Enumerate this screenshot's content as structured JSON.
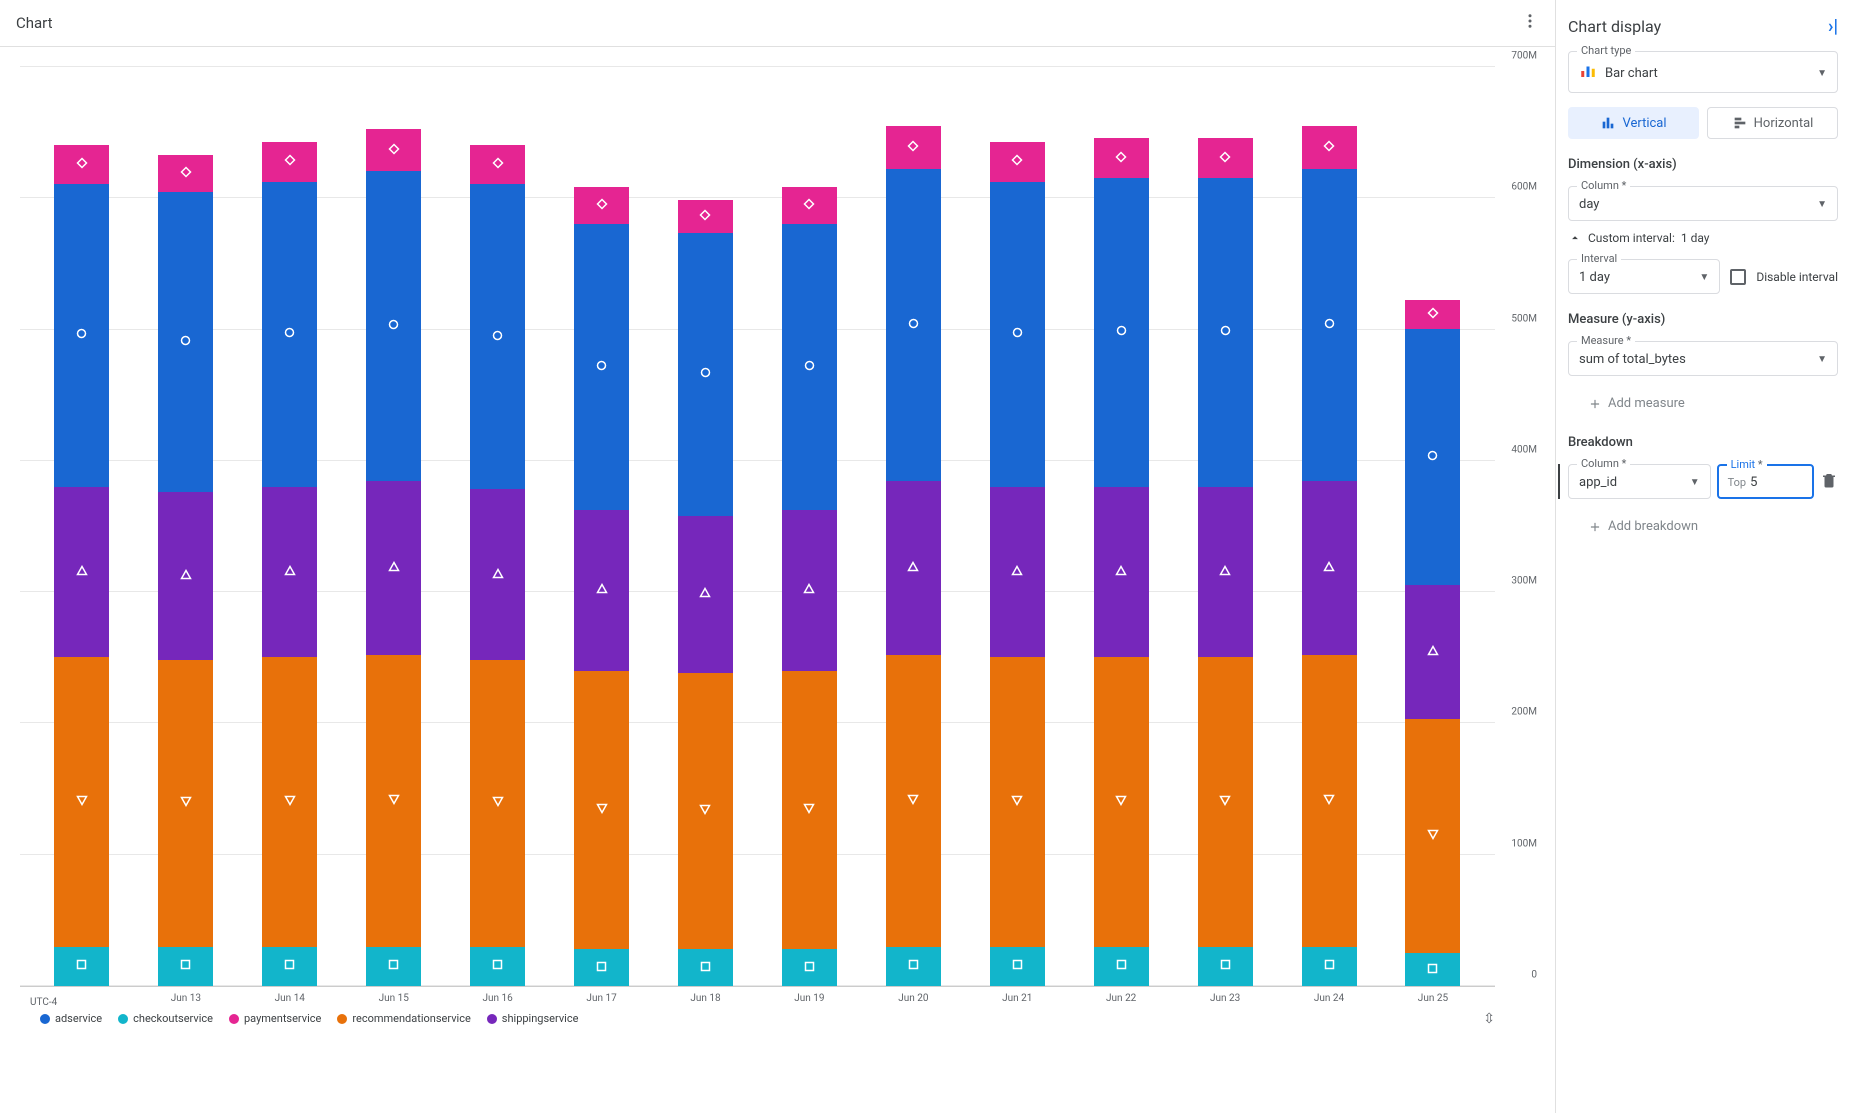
{
  "header": {
    "title": "Chart"
  },
  "chart": {
    "type": "stacked-bar",
    "ymax": 700,
    "yunit": "M",
    "ytick_step": 100,
    "grid_color": "#e8e8e8",
    "axis_font_size": 10,
    "timezone": "UTC-4",
    "categories": [
      "",
      "Jun 13",
      "Jun 14",
      "Jun 15",
      "Jun 16",
      "Jun 17",
      "Jun 18",
      "Jun 19",
      "Jun 20",
      "Jun 21",
      "Jun 22",
      "Jun 23",
      "Jun 24",
      "Jun 25"
    ],
    "series": [
      {
        "name": "checkoutservice",
        "color": "#12b5cb",
        "marker": "square"
      },
      {
        "name": "recommendationservice",
        "color": "#e8710a",
        "marker": "triangle-down"
      },
      {
        "name": "shippingservice",
        "color": "#7627bb",
        "marker": "triangle-up"
      },
      {
        "name": "adservice",
        "color": "#1967d2",
        "marker": "circle"
      },
      {
        "name": "paymentservice",
        "color": "#e52592",
        "marker": "diamond"
      }
    ],
    "data": [
      [
        30,
        220,
        130,
        230,
        30
      ],
      [
        30,
        218,
        128,
        228,
        28
      ],
      [
        30,
        220,
        130,
        232,
        30
      ],
      [
        30,
        222,
        132,
        236,
        32
      ],
      [
        30,
        218,
        130,
        232,
        30
      ],
      [
        28,
        212,
        122,
        218,
        28
      ],
      [
        28,
        210,
        120,
        215,
        25
      ],
      [
        28,
        212,
        122,
        218,
        28
      ],
      [
        30,
        222,
        132,
        238,
        32
      ],
      [
        30,
        220,
        130,
        232,
        30
      ],
      [
        30,
        220,
        130,
        235,
        30
      ],
      [
        30,
        220,
        130,
        235,
        30
      ],
      [
        30,
        222,
        132,
        238,
        32
      ],
      [
        25,
        178,
        102,
        195,
        22
      ]
    ]
  },
  "legend": [
    {
      "name": "adservice",
      "color": "#1967d2"
    },
    {
      "name": "checkoutservice",
      "color": "#12b5cb"
    },
    {
      "name": "paymentservice",
      "color": "#e52592"
    },
    {
      "name": "recommendationservice",
      "color": "#e8710a"
    },
    {
      "name": "shippingservice",
      "color": "#7627bb"
    }
  ],
  "sidebar": {
    "title": "Chart display",
    "chart_type": {
      "label": "Chart type",
      "value": "Bar chart"
    },
    "orientation": {
      "vertical": "Vertical",
      "horizontal": "Horizontal",
      "active": "vertical"
    },
    "dimension": {
      "title": "Dimension (x-axis)",
      "column_label": "Column",
      "column_value": "day",
      "custom_interval_label": "Custom interval:",
      "custom_interval_value": "1 day",
      "interval_label": "Interval",
      "interval_value": "1 day",
      "disable_label": "Disable interval"
    },
    "measure": {
      "title": "Measure (y-axis)",
      "label": "Measure",
      "value": "sum of total_bytes",
      "add": "Add measure"
    },
    "breakdown": {
      "title": "Breakdown",
      "column_label": "Column",
      "column_value": "app_id",
      "limit_label": "Limit",
      "limit_prefix": "Top",
      "limit_value": "5",
      "add": "Add breakdown"
    }
  }
}
